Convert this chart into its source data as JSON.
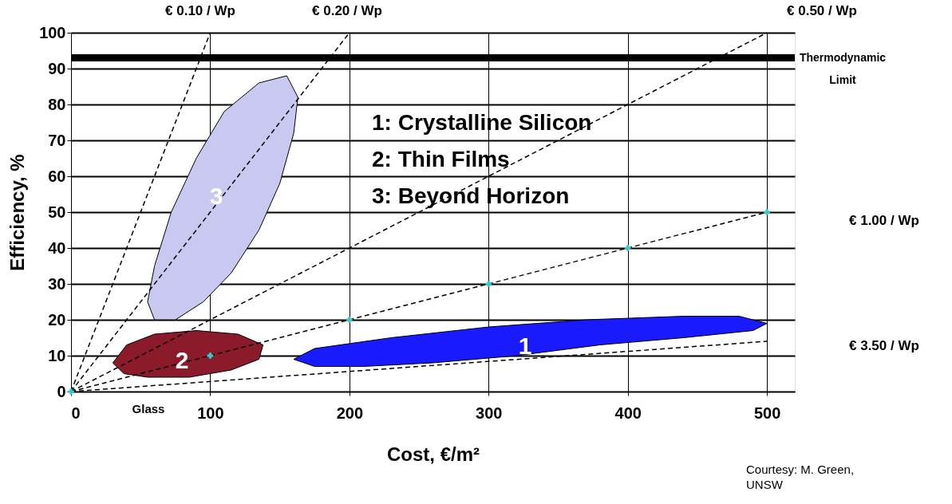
{
  "chart_data": {
    "type": "scatter",
    "xlabel": "Cost, €/m²",
    "ylabel": "Efficiency, %",
    "xlim": [
      0,
      520
    ],
    "xticks": [
      0,
      100,
      200,
      300,
      400,
      500
    ],
    "ylim": [
      0,
      100
    ],
    "yticks": [
      0,
      10,
      20,
      30,
      40,
      50,
      60,
      70,
      80,
      90,
      100
    ],
    "grid": true,
    "series": [
      {
        "type": "area",
        "color": "#c8c8f0",
        "x": [
          55,
          60,
          72,
          90,
          110,
          135,
          155,
          163,
          160,
          150,
          135,
          115,
          95,
          75,
          60,
          55
        ],
        "values": [
          25,
          35,
          50,
          65,
          78,
          86,
          88,
          82,
          72,
          58,
          45,
          33,
          25,
          20,
          20,
          25
        ]
      },
      {
        "type": "area",
        "color": "#8b1a2b",
        "x": [
          30,
          40,
          60,
          90,
          120,
          138,
          135,
          115,
          85,
          55,
          38,
          30
        ],
        "values": [
          8,
          13,
          16,
          17,
          16,
          13,
          9,
          6,
          4,
          4,
          5,
          8
        ]
      },
      {
        "type": "area",
        "color": "#1a1aff",
        "x": [
          160,
          175,
          230,
          300,
          370,
          440,
          480,
          500,
          490,
          440,
          380,
          320,
          260,
          210,
          175,
          160
        ],
        "values": [
          9,
          12,
          15,
          18,
          20,
          21,
          21,
          19,
          17,
          15,
          13,
          10,
          8,
          7,
          7,
          9
        ]
      },
      {
        "type": "line",
        "line_style": "dashed",
        "color": "#000000",
        "x": [
          0,
          100
        ],
        "values": [
          0,
          100
        ]
      },
      {
        "type": "line",
        "line_style": "dashed",
        "color": "#000000",
        "x": [
          0,
          200
        ],
        "values": [
          0,
          100
        ]
      },
      {
        "type": "line",
        "line_style": "dashed",
        "color": "#000000",
        "x": [
          0,
          500
        ],
        "values": [
          0,
          100
        ]
      },
      {
        "type": "line",
        "line_style": "dashed",
        "color": "#000000",
        "x": [
          0,
          500
        ],
        "values": [
          0,
          50
        ]
      },
      {
        "type": "line",
        "line_style": "dashed",
        "color": "#000000",
        "x": [
          0,
          500
        ],
        "values": [
          0,
          14
        ]
      },
      {
        "marker": "cross",
        "color": "#33cccc",
        "x": [
          0,
          100,
          200,
          300,
          400,
          500
        ],
        "values": [
          0,
          10,
          20,
          30,
          40,
          50
        ]
      }
    ],
    "ref_lines": [
      {
        "axis": "y",
        "value": 93,
        "label": "Thermodynamic Limit",
        "color": "#000000"
      }
    ],
    "annotations": [
      "€ 0.10 / Wp",
      "€ 0.20 / Wp",
      "€ 0.50 / Wp",
      "€ 1.00 / Wp",
      "€ 3.50 / Wp",
      "3",
      "2",
      "1",
      "1: Crystalline Silicon",
      "2: Thin Films",
      "3: Beyond Horizon",
      "Glass",
      "Courtesy: M. Green, UNSW"
    ]
  }
}
